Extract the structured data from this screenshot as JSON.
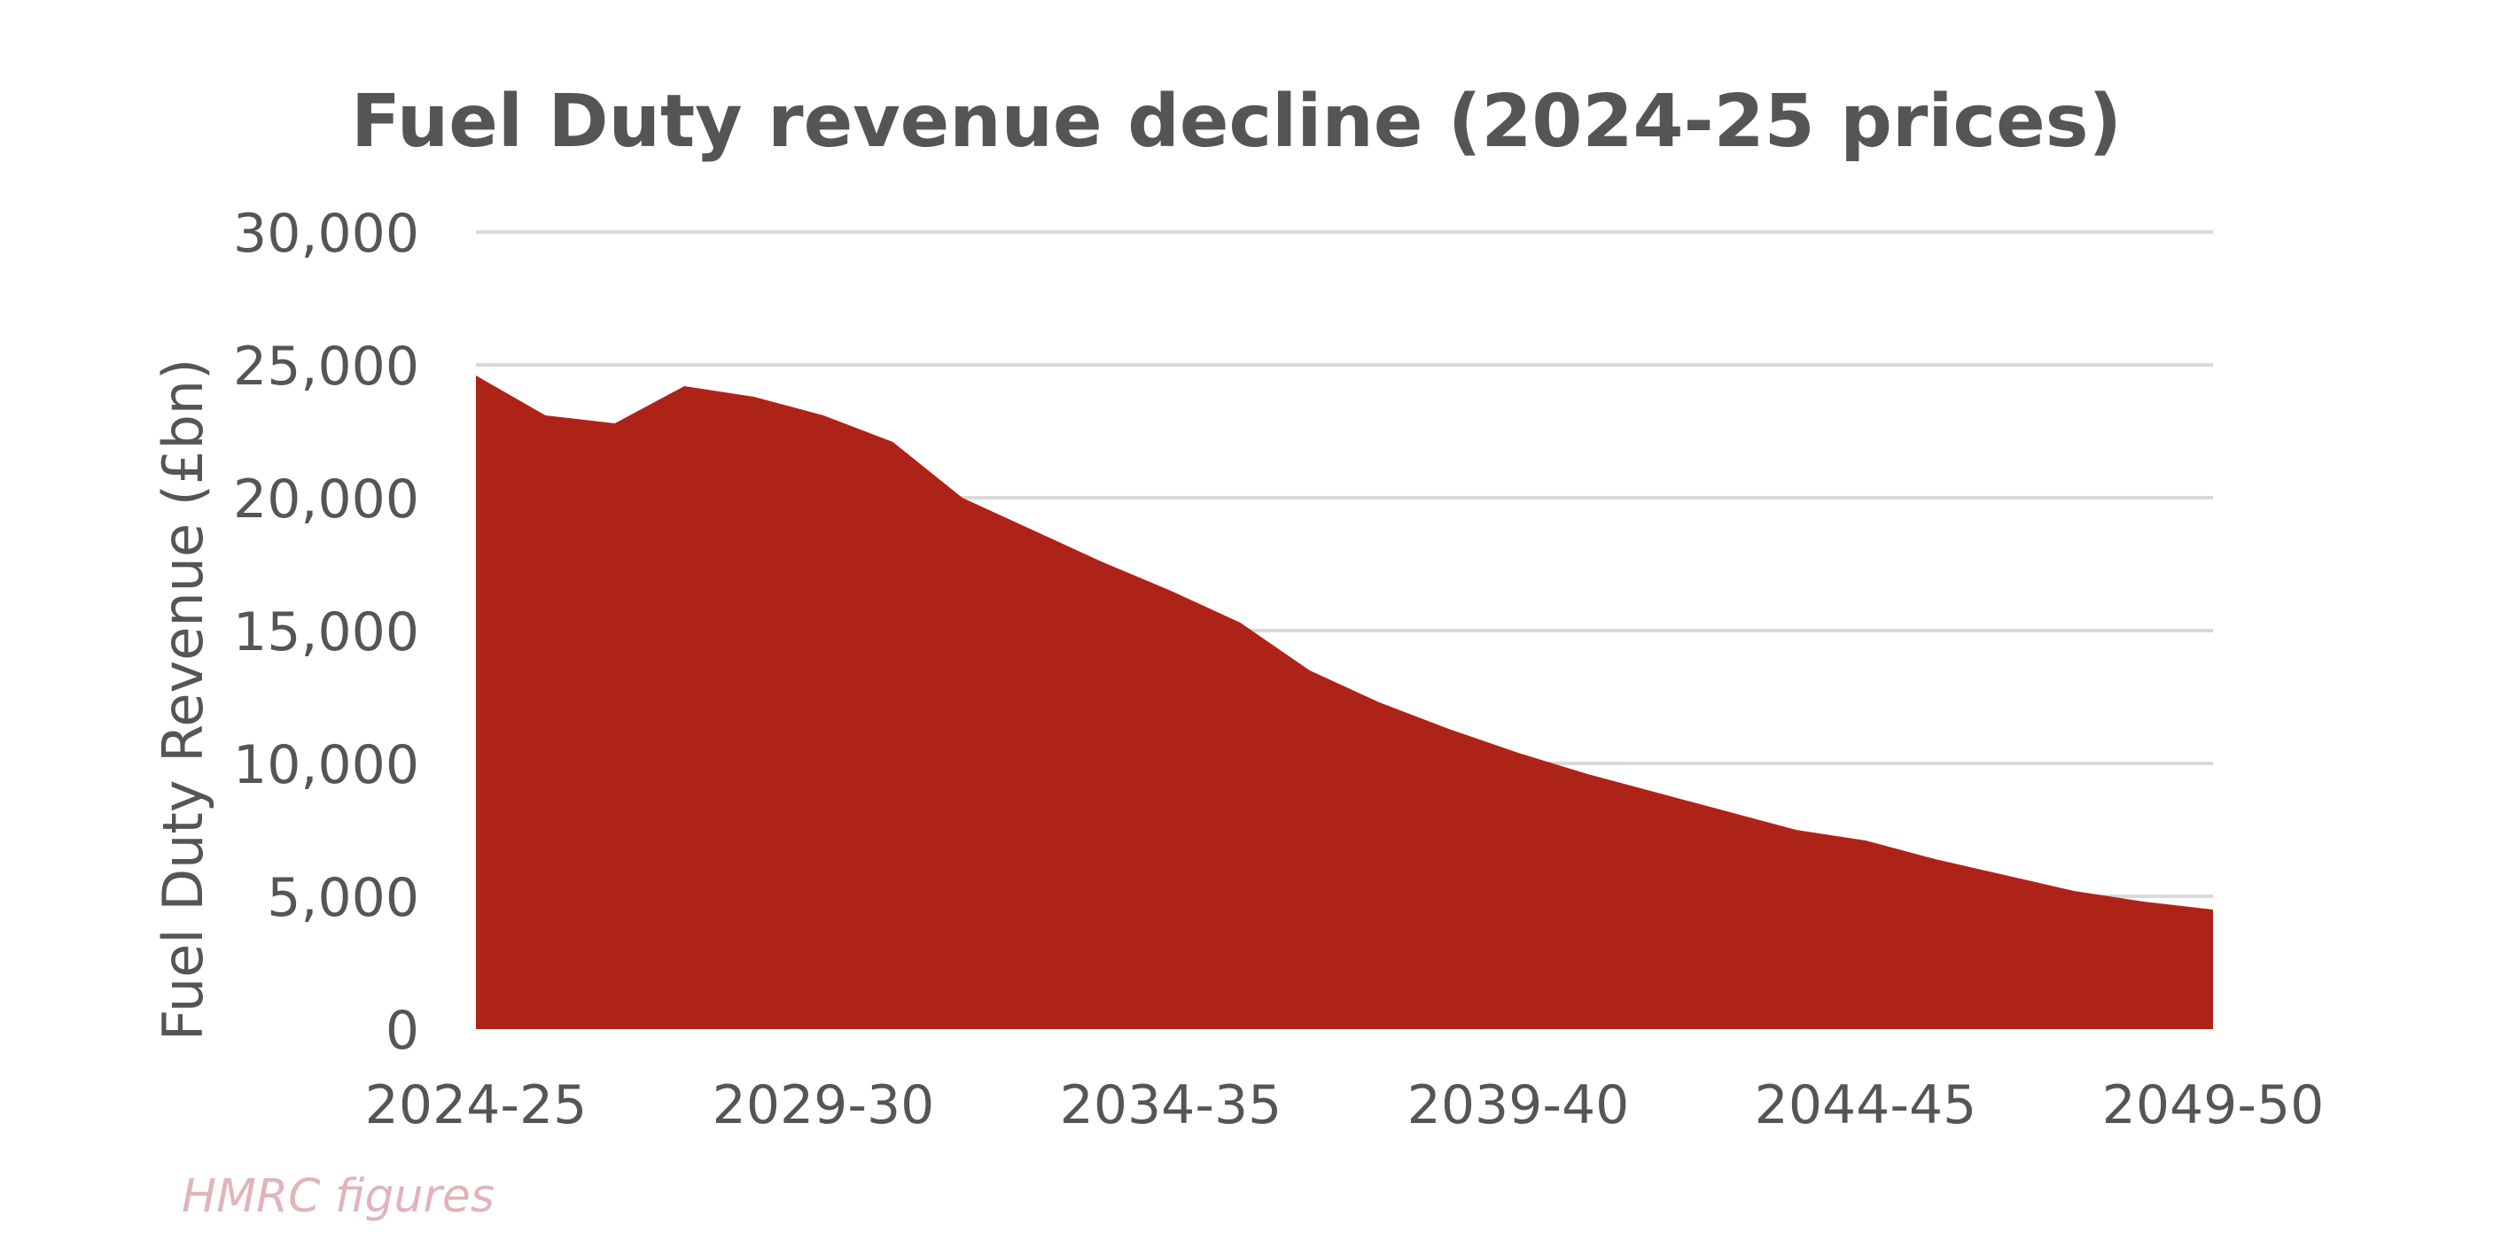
{
  "chart_data": {
    "type": "area",
    "title": "Fuel Duty revenue decline (2024-25 prices)",
    "xlabel": "",
    "ylabel": "Fuel Duty Revenue (£bn)",
    "ylim": [
      0,
      30000
    ],
    "yticks": [
      0,
      5000,
      10000,
      15000,
      20000,
      25000,
      30000
    ],
    "ytick_labels": [
      "0",
      "5,000",
      "10,000",
      "15,000",
      "20,000",
      "25,000",
      "30,000"
    ],
    "grid": true,
    "legend": "none",
    "x": [
      "2024-25",
      "2025-26",
      "2026-27",
      "2027-28",
      "2028-29",
      "2029-30",
      "2030-31",
      "2031-32",
      "2032-33",
      "2033-34",
      "2034-35",
      "2035-36",
      "2036-37",
      "2037-38",
      "2038-39",
      "2039-40",
      "2040-41",
      "2041-42",
      "2042-43",
      "2043-44",
      "2044-45",
      "2045-46",
      "2046-47",
      "2047-48",
      "2048-49",
      "2049-50"
    ],
    "xtick_labels": [
      "2024-25",
      "2029-30",
      "2034-35",
      "2039-40",
      "2044-45",
      "2049-50"
    ],
    "series": [
      {
        "name": "Fuel Duty Revenue",
        "color": "#ae2318",
        "values": [
          24600,
          23100,
          22800,
          24200,
          23800,
          23100,
          22100,
          20000,
          18800,
          17600,
          16500,
          15300,
          13500,
          12300,
          11300,
          10400,
          9600,
          8900,
          8200,
          7500,
          7100,
          6400,
          5800,
          5200,
          4800,
          4500
        ]
      }
    ],
    "source_note": "HMRC figures"
  },
  "colors": {
    "area": "#ae2318",
    "text": "#555555",
    "grid": "#d9d9d9",
    "source": "#e0b4b8"
  }
}
